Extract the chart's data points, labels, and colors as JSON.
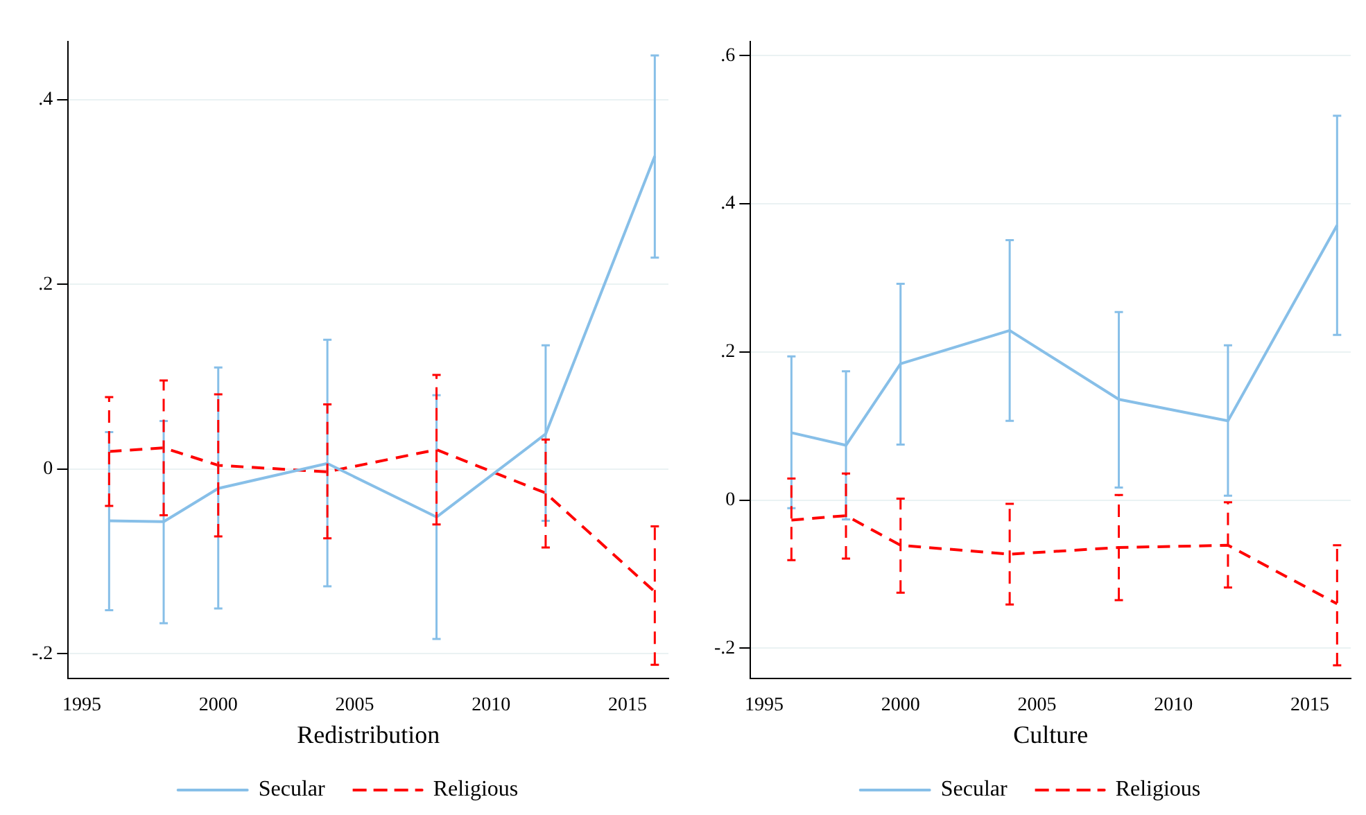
{
  "chart_data": [
    {
      "type": "line",
      "xlabel": "Redistribution",
      "x": [
        1996,
        1998,
        2000,
        2004,
        2008,
        2012,
        2016
      ],
      "xlim": [
        1994.5,
        2016.5
      ],
      "xticks": [
        1995,
        2000,
        2005,
        2010,
        2015
      ],
      "ylim": [
        -0.227,
        0.463
      ],
      "yticks": [
        {
          "value": -0.2,
          "label": "-.2"
        },
        {
          "value": 0,
          "label": "0"
        },
        {
          "value": 0.2,
          "label": ".2"
        },
        {
          "value": 0.4,
          "label": ".4"
        }
      ],
      "grid": "y",
      "legend": "bottom",
      "marker": "none",
      "series": [
        {
          "name": "Secular",
          "color": "#87bfe8",
          "line_style": "solid",
          "values": [
            -0.056,
            -0.057,
            -0.021,
            0.006,
            -0.052,
            0.038,
            0.339
          ],
          "errors": [
            [
              -0.153,
              0.04
            ],
            [
              -0.167,
              0.052
            ],
            [
              -0.151,
              0.11
            ],
            [
              -0.127,
              0.14
            ],
            [
              -0.184,
              0.08
            ],
            [
              -0.056,
              0.134
            ],
            [
              0.229,
              0.448
            ]
          ]
        },
        {
          "name": "Religious",
          "color": "#ff0000",
          "line_style": "dashed",
          "values": [
            0.019,
            0.023,
            0.004,
            -0.003,
            0.021,
            -0.026,
            -0.133
          ],
          "errors": [
            [
              -0.04,
              0.078
            ],
            [
              -0.05,
              0.096
            ],
            [
              -0.073,
              0.081
            ],
            [
              -0.075,
              0.07
            ],
            [
              -0.06,
              0.102
            ],
            [
              -0.085,
              0.032
            ],
            [
              -0.212,
              -0.062
            ]
          ]
        }
      ]
    },
    {
      "type": "line",
      "xlabel": "Culture",
      "x": [
        1996,
        1998,
        2000,
        2004,
        2008,
        2012,
        2016
      ],
      "xlim": [
        1994.5,
        2016.5
      ],
      "xticks": [
        1995,
        2000,
        2005,
        2010,
        2015
      ],
      "ylim": [
        -0.241,
        0.619
      ],
      "yticks": [
        {
          "value": -0.2,
          "label": "-.2"
        },
        {
          "value": 0,
          "label": "0"
        },
        {
          "value": 0.2,
          "label": ".2"
        },
        {
          "value": 0.4,
          "label": ".4"
        },
        {
          "value": 0.6,
          "label": ".6"
        }
      ],
      "grid": "y",
      "legend": "bottom",
      "marker": "none",
      "series": [
        {
          "name": "Secular",
          "color": "#87bfe8",
          "line_style": "solid",
          "values": [
            0.091,
            0.074,
            0.184,
            0.229,
            0.136,
            0.107,
            0.371
          ],
          "errors": [
            [
              -0.011,
              0.194
            ],
            [
              -0.026,
              0.174
            ],
            [
              0.075,
              0.292
            ],
            [
              0.107,
              0.351
            ],
            [
              0.017,
              0.254
            ],
            [
              0.006,
              0.209
            ],
            [
              0.223,
              0.519
            ]
          ]
        },
        {
          "name": "Religious",
          "color": "#ff0000",
          "line_style": "dashed",
          "values": [
            -0.027,
            -0.021,
            -0.061,
            -0.073,
            -0.064,
            -0.061,
            -0.14
          ],
          "errors": [
            [
              -0.081,
              0.029
            ],
            [
              -0.079,
              0.036
            ],
            [
              -0.125,
              0.002
            ],
            [
              -0.141,
              -0.005
            ],
            [
              -0.135,
              0.007
            ],
            [
              -0.118,
              -0.003
            ],
            [
              -0.223,
              -0.061
            ]
          ]
        }
      ]
    }
  ]
}
